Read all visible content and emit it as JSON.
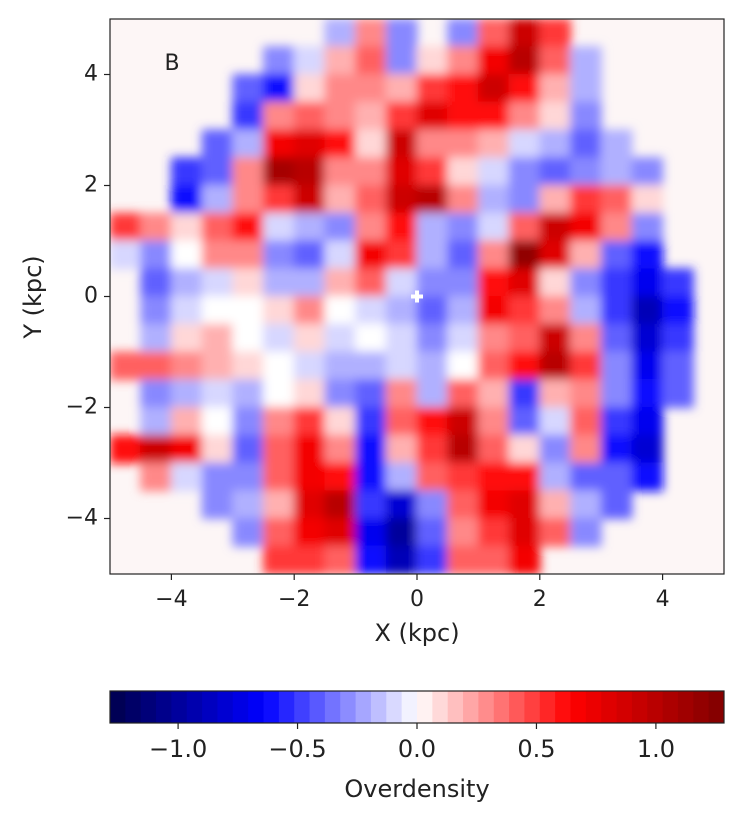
{
  "chart_data": {
    "type": "heatmap",
    "annotation": "B",
    "xlabel": "X (kpc)",
    "ylabel": "Y (kpc)",
    "xlim": [
      -5,
      5
    ],
    "ylim": [
      -5,
      5
    ],
    "xticks": [
      {
        "value": -4,
        "label": "−4"
      },
      {
        "value": -2,
        "label": "−2"
      },
      0,
      2,
      4
    ],
    "yticks": [
      {
        "value": -4,
        "label": "−4"
      },
      {
        "value": -2,
        "label": "−2"
      },
      0,
      2,
      4
    ],
    "x": [
      -4.75,
      -4.25,
      -3.75,
      -3.25,
      -2.75,
      -2.25,
      -1.75,
      -1.25,
      -0.75,
      -0.25,
      0.25,
      0.75,
      1.25,
      1.75,
      2.25,
      2.75,
      3.25,
      3.75,
      4.25,
      4.75
    ],
    "y": [
      4.75,
      4.25,
      3.75,
      3.25,
      2.75,
      2.25,
      1.75,
      1.25,
      0.75,
      0.25,
      -0.25,
      -0.75,
      -1.25,
      -1.75,
      -2.25,
      -2.75,
      -3.25,
      -3.75,
      -4.25,
      -4.75
    ],
    "z": [
      [
        null,
        null,
        null,
        null,
        null,
        null,
        null,
        -0.2,
        0.3,
        -0.3,
        null,
        -0.3,
        0.4,
        0.9,
        0.5,
        null,
        null,
        null,
        null,
        null
      ],
      [
        null,
        null,
        null,
        null,
        null,
        -0.3,
        -0.1,
        0.2,
        0.4,
        -0.3,
        0.1,
        0.3,
        0.7,
        1.0,
        0.4,
        -0.2,
        null,
        null,
        null,
        null
      ],
      [
        null,
        null,
        null,
        null,
        -0.4,
        -0.6,
        0.1,
        0.3,
        0.3,
        0.2,
        0.5,
        0.6,
        0.9,
        0.6,
        0.2,
        -0.2,
        null,
        null,
        null,
        null
      ],
      [
        null,
        null,
        null,
        null,
        -0.5,
        0.3,
        0.4,
        0.3,
        0.2,
        0.5,
        0.8,
        0.6,
        0.6,
        0.3,
        0.1,
        -0.3,
        null,
        null,
        null,
        null
      ],
      [
        null,
        null,
        null,
        -0.4,
        -0.2,
        0.7,
        0.8,
        0.6,
        0.1,
        0.9,
        0.3,
        0.3,
        0.2,
        -0.1,
        -0.2,
        -0.4,
        -0.2,
        null,
        null,
        null
      ],
      [
        null,
        null,
        -0.5,
        -0.4,
        0.3,
        1.1,
        1.0,
        0.3,
        0.3,
        0.8,
        0.5,
        0.1,
        -0.1,
        -0.3,
        -0.4,
        -0.3,
        -0.2,
        -0.3,
        null,
        null
      ],
      [
        null,
        null,
        -0.6,
        -0.2,
        0.3,
        0.5,
        0.9,
        0.2,
        0.4,
        0.9,
        1.0,
        0.3,
        -0.2,
        -0.3,
        0.2,
        0.5,
        0.4,
        0.1,
        null,
        null
      ],
      [
        0.5,
        0.3,
        0.1,
        0.4,
        0.6,
        -0.1,
        -0.2,
        -0.3,
        0.3,
        0.6,
        -0.2,
        -0.3,
        -0.1,
        0.4,
        0.9,
        0.7,
        0.3,
        -0.3,
        null,
        null
      ],
      [
        -0.1,
        -0.3,
        0.0,
        0.3,
        0.3,
        -0.3,
        -0.4,
        -0.1,
        0.7,
        0.5,
        -0.2,
        -0.4,
        0.3,
        1.2,
        0.8,
        0.2,
        -0.4,
        -0.6,
        null,
        null
      ],
      [
        null,
        -0.4,
        -0.2,
        -0.1,
        0.1,
        -0.2,
        -0.2,
        0.2,
        0.4,
        -0.1,
        -0.3,
        -0.3,
        0.6,
        0.8,
        0.1,
        -0.3,
        -0.5,
        -0.7,
        -0.5,
        null
      ],
      [
        null,
        -0.3,
        -0.1,
        0.0,
        0.0,
        0.1,
        0.3,
        0.0,
        -0.1,
        -0.2,
        -0.4,
        -0.2,
        0.7,
        0.5,
        0.3,
        -0.2,
        -0.5,
        -0.9,
        -0.6,
        null
      ],
      [
        null,
        -0.2,
        0.1,
        0.2,
        0.0,
        -0.1,
        0.1,
        -0.1,
        0.0,
        -0.1,
        -0.3,
        -0.1,
        0.3,
        0.4,
        0.9,
        0.3,
        -0.4,
        -0.8,
        -0.5,
        null
      ],
      [
        0.4,
        0.4,
        0.3,
        0.2,
        0.1,
        0.0,
        -0.1,
        -0.2,
        -0.2,
        -0.1,
        -0.2,
        0.0,
        0.4,
        0.6,
        1.0,
        0.5,
        -0.3,
        -0.7,
        -0.4,
        null
      ],
      [
        null,
        -0.3,
        -0.2,
        -0.1,
        -0.2,
        0.0,
        0.1,
        -0.3,
        -0.4,
        0.3,
        -0.2,
        0.4,
        0.2,
        -0.5,
        0.2,
        0.3,
        -0.3,
        -0.6,
        -0.4,
        null
      ],
      [
        null,
        -0.2,
        0.2,
        0.0,
        -0.3,
        0.3,
        0.5,
        0.1,
        -0.5,
        0.4,
        0.6,
        0.9,
        0.3,
        -0.4,
        -0.1,
        0.4,
        -0.5,
        -0.7,
        null,
        null
      ],
      [
        0.6,
        0.9,
        0.7,
        0.1,
        -0.4,
        0.4,
        0.7,
        0.3,
        -0.6,
        0.2,
        0.5,
        1.0,
        0.4,
        0.1,
        -0.3,
        0.3,
        -0.6,
        -0.8,
        null,
        null
      ],
      [
        null,
        0.3,
        -0.1,
        -0.3,
        -0.3,
        0.4,
        0.7,
        0.6,
        -0.6,
        -0.2,
        0.4,
        0.5,
        0.6,
        0.6,
        -0.2,
        -0.4,
        -0.4,
        -0.6,
        null,
        null
      ],
      [
        null,
        null,
        null,
        -0.3,
        -0.2,
        0.2,
        0.8,
        1.0,
        -0.5,
        -0.8,
        -0.3,
        0.4,
        0.7,
        0.8,
        0.2,
        -0.2,
        -0.4,
        null,
        null,
        null
      ],
      [
        null,
        null,
        null,
        null,
        -0.3,
        0.4,
        0.7,
        0.8,
        -0.7,
        -1.0,
        -0.4,
        0.3,
        0.5,
        0.8,
        0.4,
        -0.3,
        null,
        null,
        null,
        null
      ],
      [
        null,
        null,
        null,
        null,
        null,
        0.5,
        0.5,
        0.4,
        -0.6,
        -0.9,
        -0.5,
        0.4,
        0.4,
        0.7,
        null,
        null,
        null,
        null,
        null,
        null
      ]
    ],
    "markers": [
      {
        "x": 0,
        "y": 0,
        "color": "#ffffff"
      }
    ],
    "colormap": [
      "#00004c",
      "#0000ff",
      "#ffffff",
      "#ff0000",
      "#800000"
    ],
    "colorbar": {
      "label": "Overdensity",
      "clim": [
        -1.285,
        1.285
      ],
      "ticks": [
        {
          "value": -1.0,
          "label": "−1.0"
        },
        {
          "value": -0.5,
          "label": "−0.5"
        },
        {
          "value": 0.0,
          "label": "0.0"
        },
        {
          "value": 0.5,
          "label": "0.5"
        },
        {
          "value": 1.0,
          "label": "1.0"
        }
      ]
    }
  }
}
